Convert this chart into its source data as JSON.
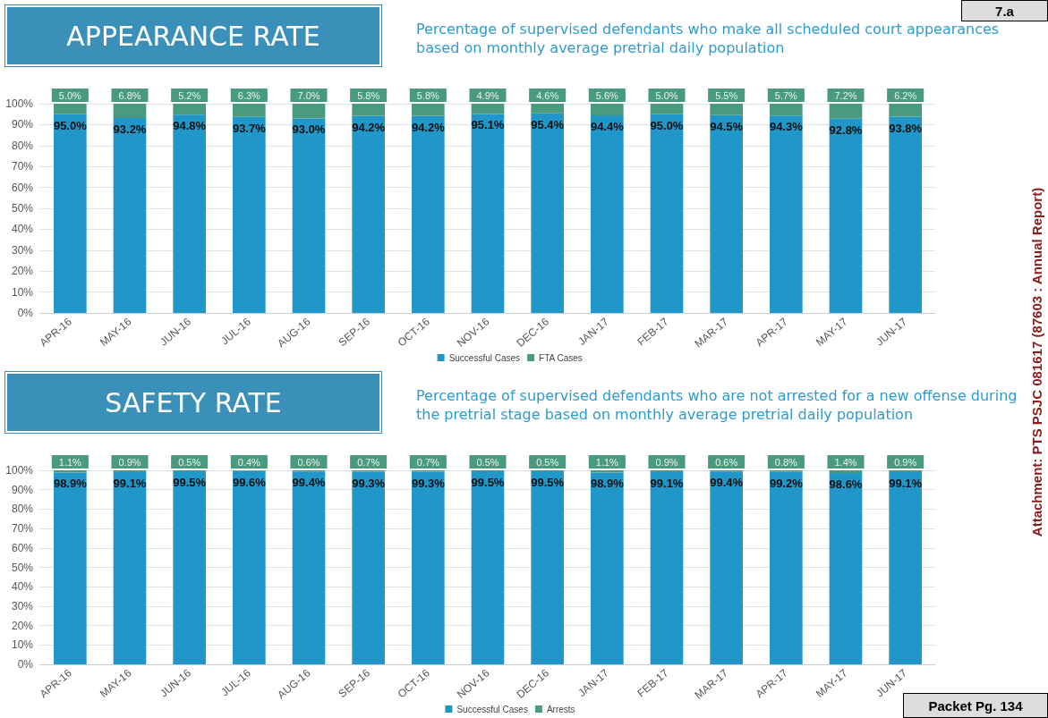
{
  "chart_data": [
    {
      "type": "bar",
      "title": "APPEARANCE RATE",
      "subtitle": "Percentage of supervised defendants who make all scheduled court appearances based on monthly average pretrial daily population",
      "categories": [
        "APR-16",
        "MAY-16",
        "JUN-16",
        "JUL-16",
        "AUG-16",
        "SEP-16",
        "OCT-16",
        "NOV-16",
        "DEC-16",
        "JAN-17",
        "FEB-17",
        "MAR-17",
        "APR-17",
        "MAY-17",
        "JUN-17"
      ],
      "stacked": true,
      "series": [
        {
          "name": "Successful Cases",
          "color": "#2196c9",
          "values": [
            95.0,
            93.2,
            94.8,
            93.7,
            93.0,
            94.2,
            94.2,
            95.1,
            95.4,
            94.4,
            95.0,
            94.5,
            94.3,
            92.8,
            93.8
          ],
          "value_labels": [
            "95.0%",
            "93.2%",
            "94.8%",
            "93.7%",
            "93.0%",
            "94.2%",
            "94.2%",
            "95.1%",
            "95.4%",
            "94.4%",
            "95.0%",
            "94.5%",
            "94.3%",
            "92.8%",
            "93.8%"
          ]
        },
        {
          "name": "FTA Cases",
          "color": "#4a9a7f",
          "values": [
            5.0,
            6.8,
            5.2,
            6.3,
            7.0,
            5.8,
            5.8,
            4.9,
            4.6,
            5.6,
            5.0,
            5.5,
            5.7,
            7.2,
            6.2
          ],
          "value_labels": [
            "5.0%",
            "6.8%",
            "5.2%",
            "6.3%",
            "7.0%",
            "5.8%",
            "5.8%",
            "4.9%",
            "4.6%",
            "5.6%",
            "5.0%",
            "5.5%",
            "5.7%",
            "7.2%",
            "6.2%"
          ]
        }
      ],
      "ylim": [
        0,
        100
      ],
      "yticks": [
        {
          "value": 0,
          "label": "0%"
        },
        {
          "value": 10,
          "label": "10%"
        },
        {
          "value": 20,
          "label": "20%"
        },
        {
          "value": 30,
          "label": "30%"
        },
        {
          "value": 40,
          "label": "40%"
        },
        {
          "value": 50,
          "label": "50%"
        },
        {
          "value": 60,
          "label": "60%"
        },
        {
          "value": 70,
          "label": "70%"
        },
        {
          "value": 80,
          "label": "80%"
        },
        {
          "value": 90,
          "label": "90%"
        },
        {
          "value": 100,
          "label": "100%"
        }
      ],
      "grid": "y",
      "legend": "bottom",
      "annotations": [
        "7.a",
        "Attachment: PTS PSJC 081617  (87603 : Annual Report)"
      ]
    },
    {
      "type": "bar",
      "title": "SAFETY RATE",
      "subtitle": "Percentage of supervised defendants who are not arrested for a new offense during the pretrial stage based on monthly average pretrial daily population",
      "categories": [
        "APR-16",
        "MAY-16",
        "JUN-16",
        "JUL-16",
        "AUG-16",
        "SEP-16",
        "OCT-16",
        "NOV-16",
        "DEC-16",
        "JAN-17",
        "FEB-17",
        "MAR-17",
        "APR-17",
        "MAY-17",
        "JUN-17"
      ],
      "stacked": true,
      "series": [
        {
          "name": "Successful Cases",
          "color": "#2196c9",
          "values": [
            98.9,
            99.1,
            99.5,
            99.6,
            99.4,
            99.3,
            99.3,
            99.5,
            99.5,
            98.9,
            99.1,
            99.4,
            99.2,
            98.6,
            99.1
          ],
          "value_labels": [
            "98.9%",
            "99.1%",
            "99.5%",
            "99.6%",
            "99.4%",
            "99.3%",
            "99.3%",
            "99.5%",
            "99.5%",
            "98.9%",
            "99.1%",
            "99.4%",
            "99.2%",
            "98.6%",
            "99.1%"
          ]
        },
        {
          "name": "Arrests",
          "color": "#4a9a7f",
          "values": [
            1.1,
            0.9,
            0.5,
            0.4,
            0.6,
            0.7,
            0.7,
            0.5,
            0.5,
            1.1,
            0.9,
            0.6,
            0.8,
            1.4,
            0.9
          ],
          "value_labels": [
            "1.1%",
            "0.9%",
            "0.5%",
            "0.4%",
            "0.6%",
            "0.7%",
            "0.7%",
            "0.5%",
            "0.5%",
            "1.1%",
            "0.9%",
            "0.6%",
            "0.8%",
            "1.4%",
            "0.9%"
          ]
        }
      ],
      "ylim": [
        0,
        100
      ],
      "yticks": [
        {
          "value": 0,
          "label": "0%"
        },
        {
          "value": 10,
          "label": "10%"
        },
        {
          "value": 20,
          "label": "20%"
        },
        {
          "value": 30,
          "label": "30%"
        },
        {
          "value": 40,
          "label": "40%"
        },
        {
          "value": 50,
          "label": "50%"
        },
        {
          "value": 60,
          "label": "60%"
        },
        {
          "value": 70,
          "label": "70%"
        },
        {
          "value": 80,
          "label": "80%"
        },
        {
          "value": 90,
          "label": "90%"
        },
        {
          "value": 100,
          "label": "100%"
        }
      ],
      "grid": "y",
      "legend": "bottom",
      "annotations": [
        "Packet Pg. 134"
      ]
    }
  ]
}
